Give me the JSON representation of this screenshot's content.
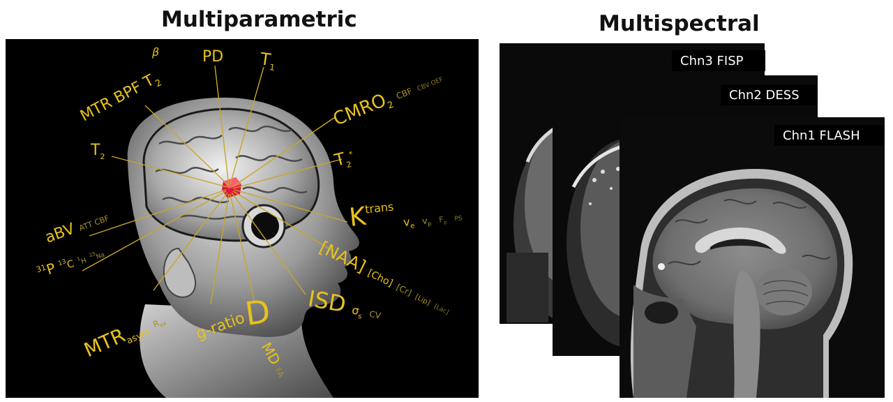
{
  "panels": {
    "left": {
      "title": "Multiparametric",
      "labels": {
        "mtr_bpf": "MTR BPF T",
        "mtr_bpf_sub": "2",
        "beta": "β",
        "pd": "PD",
        "t1": "T",
        "t1_sub": "1",
        "cmro2": "CMRO",
        "cmro2_sub": "2",
        "cbf": "CBF",
        "cbv": "CBV OEF",
        "t2": "T",
        "t2_sub": "2",
        "t2star": "T",
        "t2star_sub": "2",
        "t2star_sup": "*",
        "abv": "aBV",
        "att": "ATT CBF",
        "ktrans": "K",
        "ktrans_sup": "trans",
        "ve": "v",
        "ve_sub": "e",
        "vp": "v",
        "vp_sub": "p",
        "fp": "F",
        "fp_sub": "p",
        "ps": "PS",
        "p31": "P",
        "p31_sup": "31",
        "c13": "C",
        "c13_sup": "13",
        "h1": "H",
        "h1_sup": "1",
        "na": "Na",
        "na_sup": "23",
        "naa": "[NAA]",
        "cho": "[Cho]",
        "cr": "[Cr]",
        "lip": "[Lip]",
        "lac": "[Lac]",
        "mtrasym": "MTR",
        "mtrasym_sub": "asym",
        "rex": "R",
        "rex_sub": "ex",
        "gratio": "g-ratio",
        "d": "D",
        "md": "MD",
        "fa": "FA",
        "isd": "ISD",
        "sigma": "σ",
        "sigma_sub": "s",
        "cv": "CV"
      }
    },
    "right": {
      "title": "Multispectral",
      "channels": [
        "Chn3 FISP",
        "Chn2 DESS",
        "Chn1 FLASH"
      ]
    }
  },
  "colors": {
    "label_yellow": "#e8c21c",
    "label_dim": "#a8922a",
    "leader_line": "#c9a52a",
    "background": "#000000",
    "voxel": "#e0183c"
  }
}
